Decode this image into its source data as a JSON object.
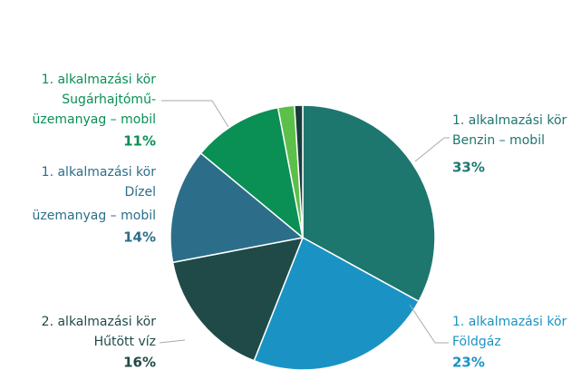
{
  "chart_data": {
    "type": "pie",
    "categories": [
      [
        "1. alkalmazási kör",
        "Benzin – mobil"
      ],
      [
        "1. alkalmazási kör",
        "Földgáz"
      ],
      [
        "2. alkalmazási kör",
        "Hűtött víz"
      ],
      [
        "1. alkalmazási kör",
        "Dízel",
        "üzemanyag – mobil"
      ],
      [
        "1. alkalmazási kör",
        "Sugárhajtómű-",
        "üzemanyag – mobil"
      ],
      null,
      null
    ],
    "values": [
      33,
      23,
      16,
      14,
      11,
      2,
      1
    ],
    "value_labels": [
      "33%",
      "23%",
      "16%",
      "14%",
      "11%",
      null,
      null
    ],
    "colors": [
      "#1d776f",
      "#1a93c4",
      "#1f4a48",
      "#2c6e8a",
      "#0a8f55",
      "#5cbf4a",
      "#173d3a"
    ],
    "label_colors": [
      "#1d776f",
      "#1a93c4",
      "#1f4a48",
      "#2c6e8a",
      "#0a8f55",
      null,
      null
    ]
  }
}
